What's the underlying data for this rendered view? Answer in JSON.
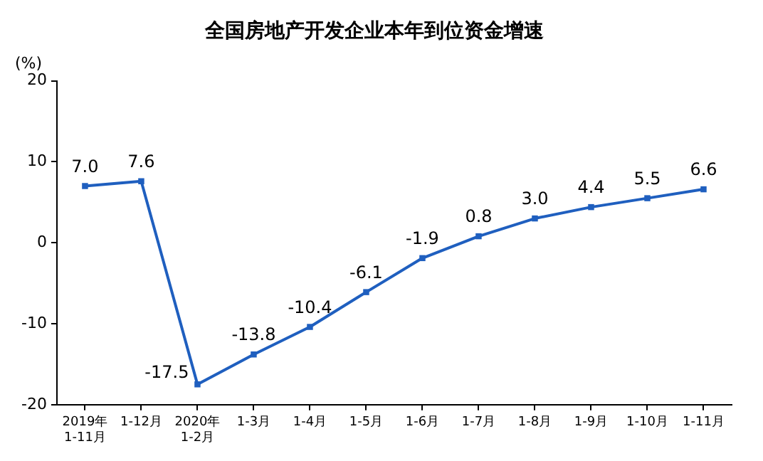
{
  "chart_data": {
    "type": "line",
    "title": "全国房地产开发企业本年到位资金增速",
    "ylabel": "(%)",
    "categories": [
      "2019年\n1-11月",
      "1-12月",
      "2020年\n1-2月",
      "1-3月",
      "1-4月",
      "1-5月",
      "1-6月",
      "1-7月",
      "1-8月",
      "1-9月",
      "1-10月",
      "1-11月"
    ],
    "series": [
      {
        "color": "#1f5fbf",
        "values": [
          7.0,
          7.6,
          -17.5,
          -13.8,
          -10.4,
          -6.1,
          -1.9,
          0.8,
          3.0,
          4.4,
          5.5,
          6.6
        ],
        "value_labels": [
          "7.0",
          "7.6",
          "-17.5",
          "-13.8",
          "-10.4",
          "-6.1",
          "-1.9",
          "0.8",
          "3.0",
          "4.4",
          "5.5",
          "6.6"
        ]
      }
    ],
    "ylim": [
      -20,
      20
    ],
    "yticks": [
      -20,
      -10,
      0,
      10,
      20
    ],
    "grid": false,
    "legend": false,
    "marker": "square",
    "line_style": "solid"
  }
}
